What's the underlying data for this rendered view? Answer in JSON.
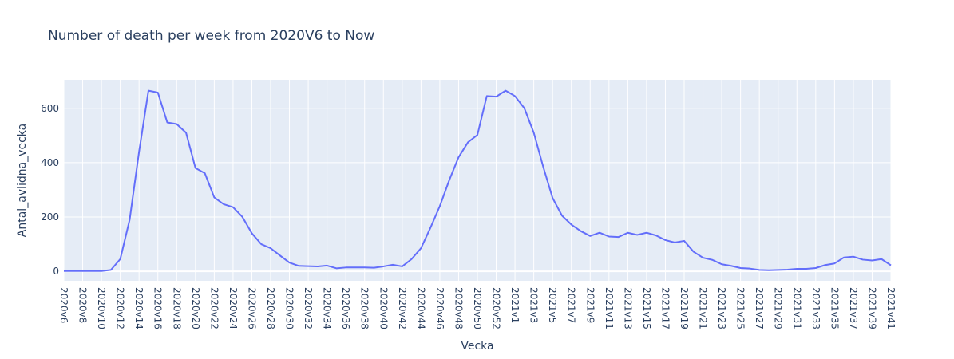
{
  "chart_data": {
    "type": "line",
    "title": "Number of death per week from 2020V6 to Now",
    "xlabel": "Vecka",
    "ylabel": "Antal_avlidna_vecka",
    "ylim": [
      -35,
      705
    ],
    "y_ticks": [
      0,
      200,
      400,
      600
    ],
    "grid": true,
    "background_color": "#e5ecf6",
    "line_color": "#636efa",
    "x": [
      "2020v6",
      "2020v7",
      "2020v8",
      "2020v9",
      "2020v10",
      "2020v11",
      "2020v12",
      "2020v13",
      "2020v14",
      "2020v15",
      "2020v16",
      "2020v17",
      "2020v18",
      "2020v19",
      "2020v20",
      "2020v21",
      "2020v22",
      "2020v23",
      "2020v24",
      "2020v25",
      "2020v26",
      "2020v27",
      "2020v28",
      "2020v29",
      "2020v30",
      "2020v31",
      "2020v32",
      "2020v33",
      "2020v34",
      "2020v35",
      "2020v36",
      "2020v37",
      "2020v38",
      "2020v39",
      "2020v40",
      "2020v41",
      "2020v42",
      "2020v43",
      "2020v44",
      "2020v45",
      "2020v46",
      "2020v47",
      "2020v48",
      "2020v49",
      "2020v50",
      "2020v51",
      "2020v52",
      "2020v53",
      "2021v1",
      "2021v2",
      "2021v3",
      "2021v4",
      "2021v5",
      "2021v6",
      "2021v7",
      "2021v8",
      "2021v9",
      "2021v10",
      "2021v11",
      "2021v12",
      "2021v13",
      "2021v14",
      "2021v15",
      "2021v16",
      "2021v17",
      "2021v18",
      "2021v19",
      "2021v20",
      "2021v21",
      "2021v22",
      "2021v23",
      "2021v24",
      "2021v25",
      "2021v26",
      "2021v27",
      "2021v28",
      "2021v29",
      "2021v30",
      "2021v31",
      "2021v32",
      "2021v33",
      "2021v34",
      "2021v35",
      "2021v36",
      "2021v37",
      "2021v38",
      "2021v39",
      "2021v40",
      "2021v41"
    ],
    "values": [
      1,
      1,
      1,
      1,
      1,
      5,
      45,
      190,
      440,
      665,
      658,
      548,
      542,
      510,
      380,
      361,
      272,
      247,
      236,
      200,
      140,
      100,
      85,
      58,
      32,
      20,
      19,
      18,
      21,
      11,
      14,
      14,
      14,
      13,
      18,
      24,
      18,
      45,
      85,
      160,
      240,
      335,
      420,
      475,
      502,
      645,
      643,
      665,
      645,
      600,
      510,
      385,
      270,
      205,
      172,
      148,
      130,
      142,
      128,
      126,
      142,
      134,
      142,
      132,
      115,
      106,
      112,
      72,
      50,
      42,
      26,
      20,
      12,
      10,
      5,
      4,
      5,
      6,
      9,
      9,
      12,
      23,
      29,
      51,
      54,
      43,
      40,
      45,
      22
    ],
    "x_tick_labels": [
      "2020v6",
      "2020v8",
      "2020v10",
      "2020v12",
      "2020v14",
      "2020v16",
      "2020v18",
      "2020v20",
      "2020v22",
      "2020v24",
      "2020v26",
      "2020v28",
      "2020v30",
      "2020v32",
      "2020v34",
      "2020v36",
      "2020v38",
      "2020v40",
      "2020v42",
      "2020v44",
      "2020v46",
      "2020v48",
      "2020v50",
      "2020v52",
      "2021v1",
      "2021v3",
      "2021v5",
      "2021v7",
      "2021v9",
      "2021v11",
      "2021v13",
      "2021v15",
      "2021v17",
      "2021v19",
      "2021v21",
      "2021v23",
      "2021v25",
      "2021v27",
      "2021v29",
      "2021v31",
      "2021v33",
      "2021v35",
      "2021v37",
      "2021v39",
      "2021v41"
    ]
  }
}
